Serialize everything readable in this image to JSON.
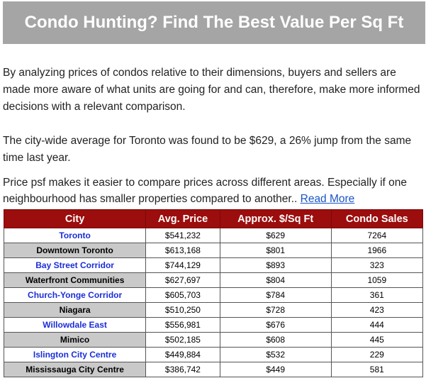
{
  "header": {
    "title": "Condo Hunting? Find The Best Value Per Sq Ft"
  },
  "paragraphs": [
    "By analyzing prices of condos relative to their dimensions, buyers and sellers are made more aware of what units are going for and can, therefore, make more informed decisions with a relevant comparison.",
    "The city-wide average for Toronto was found to be $629, a 26% jump from the same time last year.",
    "Price psf makes it easier to compare prices across different areas. Especially if one neighbourhood has smaller properties compared to another.. "
  ],
  "read_more": "Read More",
  "table": {
    "columns": [
      "City",
      "Avg. Price",
      "Approx. $/Sq Ft",
      "Condo Sales"
    ],
    "rows": [
      [
        "Toronto",
        "$541,232",
        "$629",
        "7264"
      ],
      [
        "Downtown Toronto",
        "$613,168",
        "$801",
        "1966"
      ],
      [
        "Bay Street Corridor",
        "$744,129",
        "$893",
        "323"
      ],
      [
        "Waterfront Communities",
        "$627,697",
        "$804",
        "1059"
      ],
      [
        "Church-Yonge Corridor",
        "$605,703",
        "$784",
        "361"
      ],
      [
        "Niagara",
        "$510,250",
        "$728",
        "423"
      ],
      [
        "Willowdale East",
        "$556,981",
        "$676",
        "444"
      ],
      [
        "Mimico",
        "$502,185",
        "$608",
        "445"
      ],
      [
        "Islington City Centre",
        "$449,884",
        "$532",
        "229"
      ],
      [
        "Mississauga City Centre",
        "$386,742",
        "$449",
        "581"
      ]
    ]
  }
}
